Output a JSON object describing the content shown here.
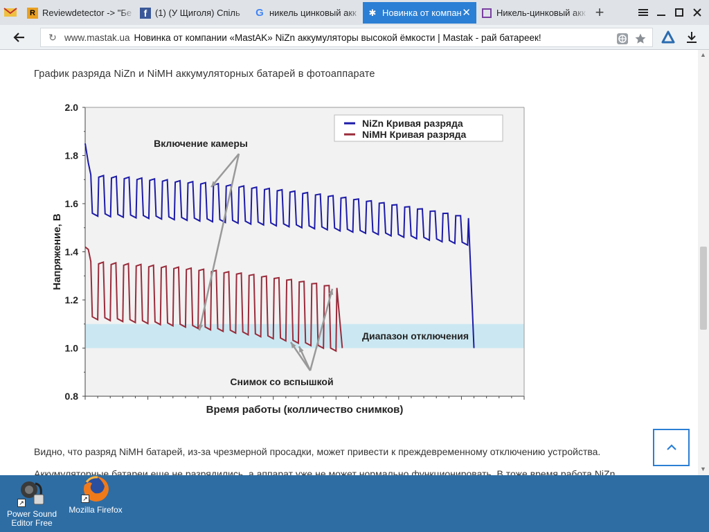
{
  "colors": {
    "accent": "#2b7fd4",
    "nizn": "#1c1aa8",
    "nimh": "#9a2b3a",
    "cutoff_band": "#cbe8f2",
    "desktop": "#2e6da4"
  },
  "tabs": [
    {
      "title": "Reviewdetector -> \"Бе",
      "icon": "reviewdetector-icon",
      "icon_letter": "R",
      "active": false
    },
    {
      "title": "(1) (У Щиголя) Спіль",
      "icon": "facebook-icon",
      "icon_letter": "f",
      "active": false
    },
    {
      "title": "никель цинковый акк",
      "icon": "google-icon",
      "icon_letter": "G",
      "active": false
    },
    {
      "title": "Новинка от компан",
      "icon": "mastak-icon",
      "icon_letter": "✱",
      "active": true
    },
    {
      "title": "Никель-цинковый акк",
      "icon": "site-icon",
      "icon_letter": "",
      "active": false
    }
  ],
  "address": {
    "domain": "www.mastak.ua",
    "page_title": "Новинка от компании «MastAK» NiZn аккумуляторы высокой ёмкости | Mastak - рай батареек!"
  },
  "article": {
    "heading": "График разряда NiZn и NiMH аккумуляторных батарей в фотоаппарате",
    "paragraph_1": "Видно, что разряд NiMH батарей, из-за чрезмерной просадки, может привести к преждевременному отключению устройства.",
    "paragraph_2": "Аккумуляторные батареи еще не разрядились, а аппарат уже не может нормально функционировать. В тоже время работа NiZn"
  },
  "chart_data": {
    "type": "line",
    "xlabel": "Время работы (колличество снимков)",
    "ylabel": "Напряжение, В",
    "ylim": [
      0.8,
      2.0
    ],
    "xlim": [
      0,
      35
    ],
    "yticks": [
      "2.0",
      "1.8",
      "1.6",
      "1.4",
      "1.2",
      "1.0",
      "0.8"
    ],
    "ytick_values": [
      2.0,
      1.8,
      1.6,
      1.4,
      1.2,
      1.0,
      0.8
    ],
    "grid": false,
    "legend_position": "top-right",
    "annotations": {
      "camera_on": "Включение камеры",
      "flash": "Снимок со вспышкой",
      "cutoff": "Диапазон отключения"
    },
    "cutoff_range": [
      1.0,
      1.1
    ],
    "series": [
      {
        "name": "NiZn  Кривая разряда",
        "color": "#1c1aa8",
        "pulses": 30,
        "start_peak": 1.85,
        "high_first": 1.72,
        "high_end": 1.55,
        "low_first": 1.56,
        "low_end": 1.44,
        "end_x": 31,
        "final_drop": 1.0
      },
      {
        "name": "NiMH Кривая разряда",
        "color": "#9a2b3a",
        "pulses": 20,
        "start_peak": 1.42,
        "high_first": 1.36,
        "high_end": 1.26,
        "low_first": 1.13,
        "low_end": 1.0,
        "end_x": 20.5,
        "final_drop": 1.0
      }
    ]
  },
  "scroll_top_icon": "chevron-up-icon",
  "desktop": {
    "icons": [
      {
        "label_line1": "Power Sound",
        "label_line2": "Editor Free",
        "icon": "power-sound-editor-icon"
      },
      {
        "label_line1": "Mozilla Firefox",
        "label_line2": "",
        "icon": "firefox-icon"
      }
    ]
  }
}
